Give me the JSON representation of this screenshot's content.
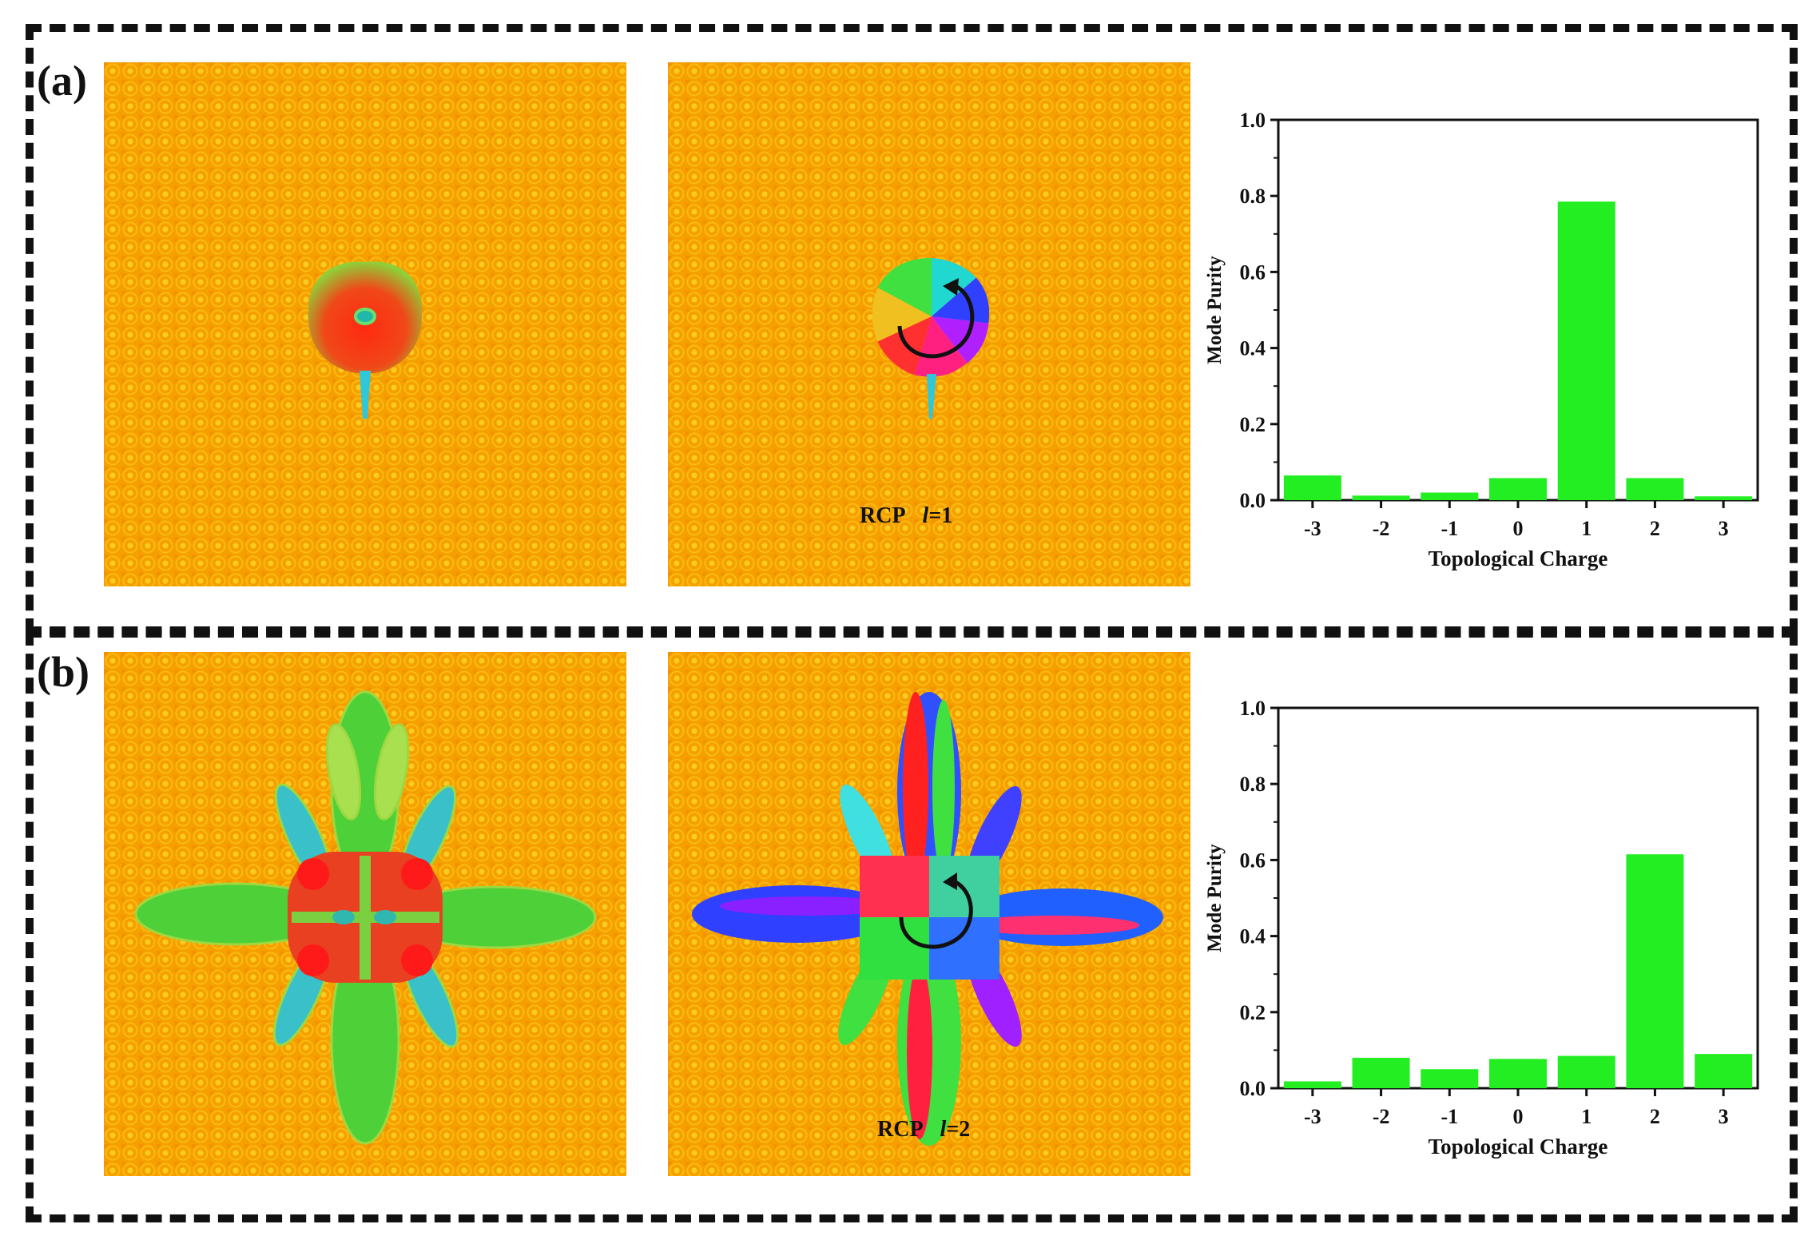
{
  "panels": [
    {
      "label": "(a)",
      "rcp_label": "RCP",
      "l_symbol": "l",
      "l_value": "=1",
      "colors": {
        "pattern_bg": "#f5a000",
        "bar": "#22ee22"
      }
    },
    {
      "label": "(b)",
      "rcp_label": "RCP",
      "l_symbol": "l",
      "l_value": "=2",
      "colors": {
        "pattern_bg": "#f5a000",
        "bar": "#22ee22"
      }
    }
  ],
  "chart_data": [
    {
      "type": "bar",
      "xlabel": "Topological Charge",
      "ylabel": "Mode Purity",
      "categories": [
        "-3",
        "-2",
        "-1",
        "0",
        "1",
        "2",
        "3"
      ],
      "values": [
        0.065,
        0.012,
        0.02,
        0.058,
        0.785,
        0.058,
        0.01
      ],
      "ylim": [
        0,
        1.0
      ],
      "yticks": [
        "0.0",
        "0.2",
        "0.4",
        "0.6",
        "0.8",
        "1.0"
      ],
      "bar_color": "#22ee22",
      "grid": false
    },
    {
      "type": "bar",
      "xlabel": "Topological Charge",
      "ylabel": "Mode Purity",
      "categories": [
        "-3",
        "-2",
        "-1",
        "0",
        "1",
        "2",
        "3"
      ],
      "values": [
        0.018,
        0.08,
        0.05,
        0.077,
        0.085,
        0.615,
        0.09
      ],
      "ylim": [
        0,
        1.0
      ],
      "yticks": [
        "0.0",
        "0.2",
        "0.4",
        "0.6",
        "0.8",
        "1.0"
      ],
      "bar_color": "#22ee22",
      "grid": false
    }
  ]
}
